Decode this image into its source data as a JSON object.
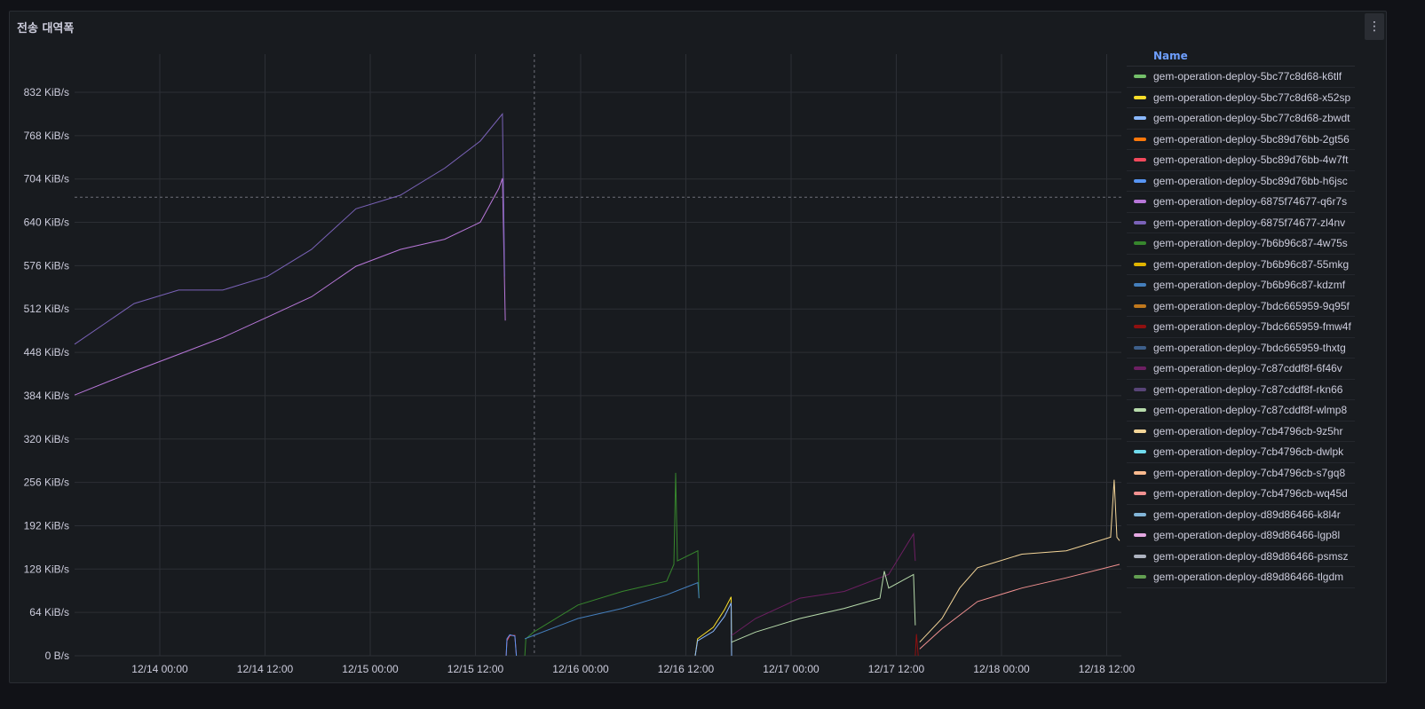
{
  "panel": {
    "title": "전송 대역폭",
    "menu_icon": "kebab-menu-icon"
  },
  "legend": {
    "header": "Name"
  },
  "chart_data": {
    "type": "line",
    "title": "전송 대역폭",
    "xlabel": "",
    "ylabel": "",
    "x_range": [
      "12/13 14:17",
      "12/18 14:13"
    ],
    "ylim": [
      0,
      870
    ],
    "y_unit": "KiB/s",
    "y_ticks": [
      "0 B/s",
      "64 KiB/s",
      "128 KiB/s",
      "192 KiB/s",
      "256 KiB/s",
      "320 KiB/s",
      "384 KiB/s",
      "448 KiB/s",
      "512 KiB/s",
      "576 KiB/s",
      "640 KiB/s",
      "704 KiB/s",
      "768 KiB/s",
      "832 KiB/s"
    ],
    "x_ticks": [
      "12/14 00:00",
      "12/14 12:00",
      "12/15 00:00",
      "12/15 12:00",
      "12/16 00:00",
      "12/16 12:00",
      "12/17 00:00",
      "12/17 12:00",
      "12/18 00:00",
      "12/18 12:00"
    ],
    "grid": true,
    "legend_placement": "right",
    "crosshair": {
      "x": "12/15 18:43",
      "y": 677
    },
    "series": [
      {
        "name": "gem-operation-deploy-5bc77c8d68-k6tlf",
        "color": "#73bf69",
        "points": []
      },
      {
        "name": "gem-operation-deploy-5bc77c8d68-x52sp",
        "color": "#fade2a",
        "points": [
          [
            "12/16 13:04",
            0
          ],
          [
            "12/16 13:20",
            25
          ],
          [
            "12/16 15:08",
            42
          ],
          [
            "12/16 16:24",
            68
          ],
          [
            "12/16 17:10",
            87
          ],
          [
            "12/16 17:13",
            0
          ]
        ]
      },
      {
        "name": "gem-operation-deploy-5bc77c8d68-zbwdt",
        "color": "#8ab8ff",
        "points": [
          [
            "12/16 13:04",
            0
          ],
          [
            "12/16 13:20",
            22
          ],
          [
            "12/16 15:08",
            36
          ],
          [
            "12/16 16:24",
            58
          ],
          [
            "12/16 17:10",
            78
          ],
          [
            "12/16 17:13",
            0
          ]
        ]
      },
      {
        "name": "gem-operation-deploy-5bc89d76bb-2gt56",
        "color": "#ff780a",
        "points": []
      },
      {
        "name": "gem-operation-deploy-5bc89d76bb-4w7ft",
        "color": "#f2495c",
        "points": [
          [
            "12/15 15:30",
            0
          ],
          [
            "12/15 15:36",
            22
          ],
          [
            "12/15 15:55",
            30
          ],
          [
            "12/15 16:30",
            30
          ],
          [
            "12/15 16:40",
            0
          ]
        ]
      },
      {
        "name": "gem-operation-deploy-5bc89d76bb-h6jsc",
        "color": "#5794f2",
        "points": [
          [
            "12/15 15:30",
            0
          ],
          [
            "12/15 15:36",
            25
          ],
          [
            "12/15 15:55",
            31
          ],
          [
            "12/15 16:30",
            29
          ],
          [
            "12/15 16:40",
            0
          ]
        ]
      },
      {
        "name": "gem-operation-deploy-6875f74677-q6r7s",
        "color": "#b877d9",
        "points": [
          [
            "12/13 14:17",
            385
          ],
          [
            "12/13 21:04",
            420
          ],
          [
            "12/14 02:08",
            445
          ],
          [
            "12/14 07:11",
            470
          ],
          [
            "12/14 12:15",
            500
          ],
          [
            "12/14 17:18",
            530
          ],
          [
            "12/14 22:22",
            575
          ],
          [
            "12/15 03:26",
            600
          ],
          [
            "12/15 08:30",
            615
          ],
          [
            "12/15 12:33",
            640
          ],
          [
            "12/15 14:40",
            690
          ],
          [
            "12/15 15:05",
            705
          ],
          [
            "12/15 15:24",
            495
          ]
        ]
      },
      {
        "name": "gem-operation-deploy-6875f74677-zl4nv",
        "color": "#7a62b8",
        "points": [
          [
            "12/13 14:17",
            460
          ],
          [
            "12/13 21:04",
            520
          ],
          [
            "12/14 02:08",
            540
          ],
          [
            "12/14 07:11",
            540
          ],
          [
            "12/14 12:15",
            560
          ],
          [
            "12/14 17:18",
            600
          ],
          [
            "12/14 22:22",
            660
          ],
          [
            "12/15 03:26",
            680
          ],
          [
            "12/15 08:30",
            720
          ],
          [
            "12/15 12:33",
            760
          ],
          [
            "12/15 15:05",
            800
          ],
          [
            "12/15 15:20",
            560
          ]
        ]
      },
      {
        "name": "gem-operation-deploy-7b6b96c87-4w75s",
        "color": "#37872d",
        "points": [
          [
            "12/15 17:38",
            0
          ],
          [
            "12/15 17:45",
            25
          ],
          [
            "12/15 18:38",
            35
          ],
          [
            "12/15 23:42",
            75
          ],
          [
            "12/16 04:45",
            95
          ],
          [
            "12/16 09:49",
            110
          ],
          [
            "12/16 10:38",
            135
          ],
          [
            "12/16 10:50",
            270
          ],
          [
            "12/16 11:02",
            140
          ],
          [
            "12/16 13:22",
            155
          ],
          [
            "12/16 13:30",
            85
          ]
        ]
      },
      {
        "name": "gem-operation-deploy-7b6b96c87-55mkg",
        "color": "#e0b400",
        "points": []
      },
      {
        "name": "gem-operation-deploy-7b6b96c87-kdzmf",
        "color": "#447ebc",
        "points": [
          [
            "12/15 17:38",
            25
          ],
          [
            "12/15 18:38",
            30
          ],
          [
            "12/15 23:42",
            55
          ],
          [
            "12/16 04:45",
            70
          ],
          [
            "12/16 09:49",
            90
          ],
          [
            "12/16 13:22",
            108
          ],
          [
            "12/16 13:30",
            85
          ]
        ]
      },
      {
        "name": "gem-operation-deploy-7bdc665959-9q95f",
        "color": "#c0781d",
        "points": []
      },
      {
        "name": "gem-operation-deploy-7bdc665959-fmw4f",
        "color": "#8f1010",
        "points": [
          [
            "12/17 14:10",
            0
          ],
          [
            "12/17 14:18",
            32
          ],
          [
            "12/17 14:30",
            0
          ]
        ]
      },
      {
        "name": "gem-operation-deploy-7bdc665959-thxtg",
        "color": "#3d5f8a",
        "points": []
      },
      {
        "name": "gem-operation-deploy-7c87cddf8f-6f46v",
        "color": "#6d1f62",
        "points": [
          [
            "12/16 17:13",
            30
          ],
          [
            "12/16 19:57",
            55
          ],
          [
            "12/17 01:01",
            85
          ],
          [
            "12/17 06:04",
            95
          ],
          [
            "12/17 11:08",
            120
          ],
          [
            "12/17 13:58",
            180
          ],
          [
            "12/17 14:10",
            140
          ]
        ]
      },
      {
        "name": "gem-operation-deploy-7c87cddf8f-rkn66",
        "color": "#584477",
        "points": []
      },
      {
        "name": "gem-operation-deploy-7c87cddf8f-wlmp8",
        "color": "#b7dbab",
        "points": [
          [
            "12/16 17:13",
            20
          ],
          [
            "12/16 19:57",
            35
          ],
          [
            "12/17 01:01",
            55
          ],
          [
            "12/17 06:04",
            70
          ],
          [
            "12/17 10:08",
            85
          ],
          [
            "12/17 10:38",
            125
          ],
          [
            "12/17 11:08",
            100
          ],
          [
            "12/17 13:58",
            120
          ],
          [
            "12/17 14:10",
            45
          ]
        ]
      },
      {
        "name": "gem-operation-deploy-7cb4796cb-9z5hr",
        "color": "#f4d598",
        "points": [
          [
            "12/17 14:40",
            20
          ],
          [
            "12/17 17:13",
            55
          ],
          [
            "12/17 19:14",
            100
          ],
          [
            "12/17 21:16",
            130
          ],
          [
            "12/18 02:20",
            150
          ],
          [
            "12/18 07:23",
            155
          ],
          [
            "12/18 12:27",
            175
          ],
          [
            "12/18 12:51",
            260
          ],
          [
            "12/18 13:10",
            175
          ],
          [
            "12/18 13:28",
            170
          ]
        ]
      },
      {
        "name": "gem-operation-deploy-7cb4796cb-dwlpk",
        "color": "#70dbed",
        "points": []
      },
      {
        "name": "gem-operation-deploy-7cb4796cb-s7gq8",
        "color": "#f9ba8f",
        "points": []
      },
      {
        "name": "gem-operation-deploy-7cb4796cb-wq45d",
        "color": "#f29191",
        "points": [
          [
            "12/17 14:40",
            10
          ],
          [
            "12/17 17:13",
            40
          ],
          [
            "12/17 21:16",
            80
          ],
          [
            "12/18 02:20",
            100
          ],
          [
            "12/18 07:23",
            115
          ],
          [
            "12/18 13:28",
            135
          ]
        ]
      },
      {
        "name": "gem-operation-deploy-d89d86466-k8l4r",
        "color": "#82b5d8",
        "points": []
      },
      {
        "name": "gem-operation-deploy-d89d86466-lgp8l",
        "color": "#e5a8e2",
        "points": []
      },
      {
        "name": "gem-operation-deploy-d89d86466-psmsz",
        "color": "#aeb3c0",
        "points": []
      },
      {
        "name": "gem-operation-deploy-d89d86466-tlgdm",
        "color": "#629e51",
        "points": []
      }
    ]
  }
}
